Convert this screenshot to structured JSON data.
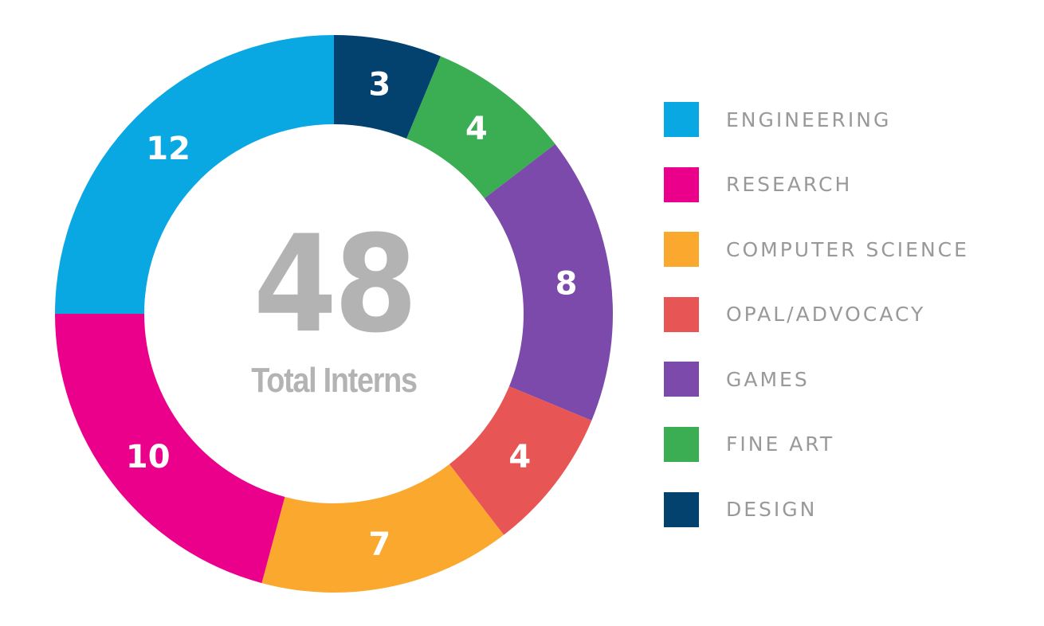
{
  "chart_data": {
    "type": "pie",
    "subtype": "donut",
    "title": "",
    "center_value": "48",
    "center_label": "Total Interns",
    "total": 48,
    "slices": [
      {
        "label": "DESIGN",
        "value": 3,
        "color": "#03416f"
      },
      {
        "label": "FINE ART",
        "value": 4,
        "color": "#3bad52"
      },
      {
        "label": "GAMES",
        "value": 8,
        "color": "#7b4aab"
      },
      {
        "label": "OPAL/ADVOCACY",
        "value": 4,
        "color": "#e85555"
      },
      {
        "label": "COMPUTER SCIENCE",
        "value": 7,
        "color": "#fba82e"
      },
      {
        "label": "RESEARCH",
        "value": 10,
        "color": "#eb008b"
      },
      {
        "label": "ENGINEERING",
        "value": 12,
        "color": "#0aa8e2"
      }
    ],
    "start_angle_deg": 0,
    "direction": "clockwise",
    "legend": {
      "position": "right",
      "entries": [
        {
          "label": "ENGINEERING",
          "color": "#0aa8e2"
        },
        {
          "label": "RESEARCH",
          "color": "#eb008b"
        },
        {
          "label": "COMPUTER SCIENCE",
          "color": "#fba82e"
        },
        {
          "label": "OPAL/ADVOCACY",
          "color": "#e85555"
        },
        {
          "label": "GAMES",
          "color": "#7b4aab"
        },
        {
          "label": "FINE ART",
          "color": "#3bad52"
        },
        {
          "label": "DESIGN",
          "color": "#03416f"
        }
      ]
    }
  }
}
